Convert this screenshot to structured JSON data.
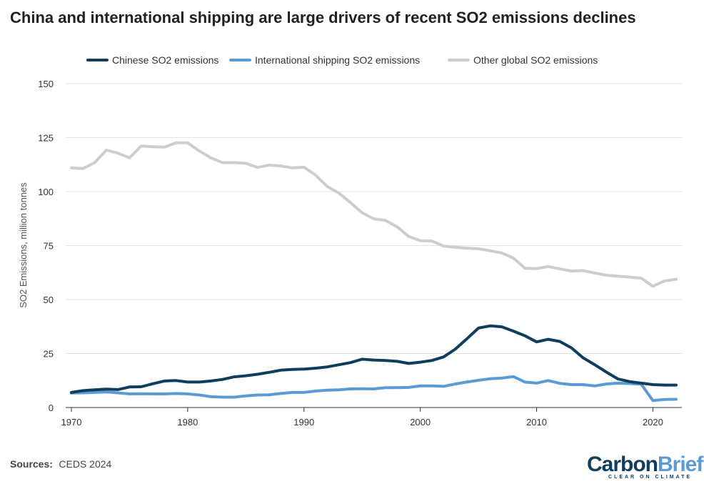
{
  "chart_data": {
    "type": "line",
    "title": "China and international shipping are large drivers of recent SO2 emissions declines",
    "xlabel": "",
    "ylabel": "SO2 Emissions, million tonnes",
    "xlim": [
      1970,
      2022
    ],
    "ylim": [
      0,
      150
    ],
    "x_ticks": [
      "1970",
      "1980",
      "1990",
      "2000",
      "2010",
      "2020"
    ],
    "y_ticks": [
      "0",
      "25",
      "50",
      "75",
      "100",
      "125",
      "150"
    ],
    "grid": true,
    "legend_position": "top",
    "x": [
      1970,
      1971,
      1972,
      1973,
      1974,
      1975,
      1976,
      1977,
      1978,
      1979,
      1980,
      1981,
      1982,
      1983,
      1984,
      1985,
      1986,
      1987,
      1988,
      1989,
      1990,
      1991,
      1992,
      1993,
      1994,
      1995,
      1996,
      1997,
      1998,
      1999,
      2000,
      2001,
      2002,
      2003,
      2004,
      2005,
      2006,
      2007,
      2008,
      2009,
      2010,
      2011,
      2012,
      2013,
      2014,
      2015,
      2016,
      2017,
      2018,
      2019,
      2020,
      2021,
      2022
    ],
    "series": [
      {
        "name": "Chinese SO2 emissions",
        "color": "#0f3d5e",
        "values": [
          7,
          7.8,
          8.2,
          8.5,
          8.3,
          9.5,
          9.6,
          11,
          12.3,
          12.5,
          11.8,
          11.8,
          12.3,
          13,
          14.2,
          14.7,
          15.4,
          16.3,
          17.3,
          17.6,
          17.8,
          18.2,
          18.8,
          19.8,
          20.8,
          22.4,
          22,
          21.8,
          21.4,
          20.4,
          21,
          21.8,
          23.4,
          27,
          31.8,
          36.8,
          37.8,
          37.4,
          35.4,
          33.2,
          30.4,
          31.6,
          30.6,
          27.6,
          23,
          19.8,
          16.4,
          13.2,
          12,
          11.3,
          10.6,
          10.4,
          10.4
        ]
      },
      {
        "name": "International shipping SO2 emissions",
        "color": "#5b9bd5",
        "values": [
          6.7,
          6.8,
          7,
          7.2,
          6.8,
          6.3,
          6.4,
          6.3,
          6.3,
          6.5,
          6.3,
          5.8,
          5,
          4.8,
          4.8,
          5.4,
          5.8,
          5.9,
          6.5,
          7,
          7,
          7.6,
          8,
          8.2,
          8.6,
          8.7,
          8.6,
          9.2,
          9.2,
          9.3,
          10,
          10,
          9.8,
          10.9,
          11.8,
          12.6,
          13.3,
          13.6,
          14.3,
          11.8,
          11.3,
          12.5,
          11.2,
          10.6,
          10.6,
          10,
          10.9,
          11.3,
          11.1,
          10.8,
          3.2,
          3.7,
          3.8
        ]
      },
      {
        "name": "Other global SO2 emissions",
        "color": "#cdcdcd",
        "values": [
          111,
          110.7,
          113.4,
          119.2,
          117.8,
          115.6,
          121.1,
          120.8,
          120.6,
          122.6,
          122.6,
          118.8,
          115.6,
          113.4,
          113.4,
          113.1,
          111.2,
          112.3,
          111.9,
          111,
          111.3,
          107.6,
          102.4,
          99.3,
          94.9,
          90.2,
          87.4,
          86.7,
          83.7,
          79.2,
          77.3,
          77.1,
          74.8,
          74.2,
          73.8,
          73.5,
          72.6,
          71.6,
          69.2,
          64.5,
          64.3,
          65.3,
          64.2,
          63.2,
          63.4,
          62.3,
          61.3,
          60.8,
          60.4,
          59.9,
          56.2,
          58.6,
          59.4
        ]
      }
    ]
  },
  "footer": {
    "sources_label": "Sources:",
    "sources_text": "CEDS 2024"
  },
  "logo": {
    "part1": "Carbon",
    "part2": "Brief",
    "tagline": "CLEAR ON CLIMATE",
    "color1": "#0f3d5e",
    "color2": "#5b9bd5"
  }
}
